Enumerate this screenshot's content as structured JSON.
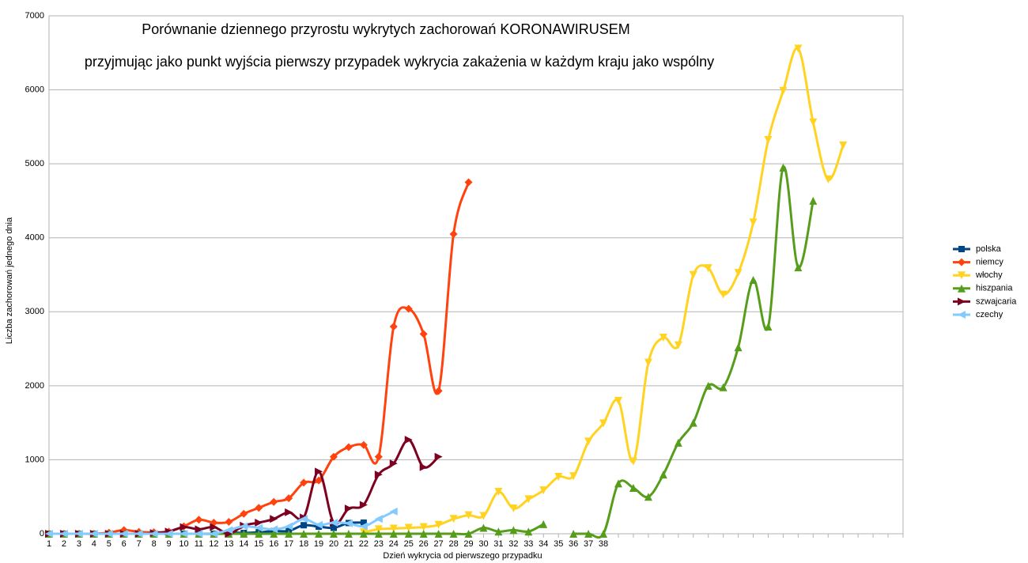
{
  "chart_data": {
    "type": "line",
    "title": "Porównanie dziennego przyrostu wykrytych zachorowań KORONAWIRUSEM",
    "subtitle": "przyjmując jako punkt wyjścia pierwszy przypadek wykrycia zakażenia w każdym kraju jako wspólny",
    "x_label": "Dzień wykrycia od pierwszego przypadku",
    "y_label": "Liczba zachorowań jednego dnia",
    "categories": [
      "1",
      "2",
      "3",
      "4",
      "5",
      "6",
      "7",
      "8",
      "9",
      "10",
      "11",
      "12",
      "13",
      "14",
      "15",
      "16",
      "17",
      "18",
      "19",
      "20",
      "21",
      "22",
      "23",
      "24",
      "25",
      "26",
      "27",
      "28",
      "29",
      "30",
      "31",
      "32",
      "33",
      "34",
      "35",
      "36",
      "37",
      "38",
      null,
      null,
      null,
      null,
      null,
      null,
      null,
      null,
      null,
      null,
      null,
      null,
      null,
      null,
      null,
      null,
      null,
      null,
      null,
      null
    ],
    "ylim": [
      0,
      7000
    ],
    "yticks": [
      0,
      1000,
      2000,
      3000,
      4000,
      5000,
      6000,
      7000
    ],
    "grid": true,
    "legend": "right",
    "series": [
      {
        "name": "polska",
        "color": "#004586",
        "marker": "square",
        "values": [
          0,
          0,
          0,
          0,
          0,
          0,
          0,
          0,
          0,
          0,
          0,
          0,
          17,
          11,
          20,
          36,
          38,
          115,
          96,
          80,
          145,
          150,
          null,
          null,
          null,
          null,
          null,
          null,
          null,
          null,
          null,
          null,
          null,
          null,
          null,
          null,
          null,
          null,
          null,
          null,
          null,
          null,
          null,
          null,
          null,
          null,
          null,
          null,
          null,
          null,
          null,
          null,
          null,
          null,
          null,
          null,
          null,
          null
        ]
      },
      {
        "name": "niemcy",
        "color": "#ff420e",
        "marker": "diamond",
        "values": [
          0,
          0,
          0,
          0,
          15,
          50,
          25,
          20,
          30,
          100,
          190,
          150,
          160,
          270,
          350,
          430,
          480,
          690,
          720,
          1040,
          1170,
          1200,
          1040,
          2800,
          3040,
          2700,
          1930,
          4050,
          4750,
          null,
          null,
          null,
          null,
          null,
          null,
          null,
          null,
          null,
          null,
          null,
          null,
          null,
          null,
          null,
          null,
          null,
          null,
          null,
          null,
          null,
          null,
          null,
          null,
          null,
          null,
          null,
          null,
          null
        ]
      },
      {
        "name": "włochy",
        "color": "#ffd320",
        "marker": "down",
        "values": [
          null,
          null,
          null,
          null,
          null,
          null,
          null,
          null,
          null,
          null,
          null,
          null,
          null,
          null,
          null,
          null,
          null,
          null,
          null,
          null,
          null,
          20,
          60,
          70,
          80,
          90,
          120,
          200,
          250,
          240,
          566,
          342,
          466,
          587,
          769,
          778,
          1247,
          1492,
          1797,
          977,
          2313,
          2651,
          2547,
          3497,
          3590,
          3233,
          3526,
          4207,
          5322,
          5986,
          6557,
          5560,
          4789,
          5249,
          null,
          null,
          null,
          null
        ]
      },
      {
        "name": "hiszpania",
        "color": "#579d1c",
        "marker": "up",
        "values": [
          0,
          0,
          0,
          0,
          0,
          0,
          0,
          0,
          0,
          0,
          0,
          0,
          0,
          0,
          0,
          0,
          0,
          0,
          0,
          0,
          0,
          0,
          0,
          0,
          0,
          0,
          0,
          0,
          0,
          80,
          30,
          50,
          30,
          130,
          null,
          0,
          0,
          0,
          680,
          620,
          500,
          800,
          1230,
          1500,
          2000,
          1980,
          2520,
          3430,
          2800,
          4950,
          3600,
          4500,
          null,
          null,
          null,
          null,
          null,
          null
        ]
      },
      {
        "name": "szwajcaria",
        "color": "#7e0021",
        "marker": "right",
        "values": [
          0,
          0,
          0,
          0,
          0,
          0,
          0,
          10,
          30,
          90,
          60,
          90,
          0,
          110,
          150,
          200,
          290,
          220,
          840,
          150,
          340,
          390,
          800,
          950,
          1270,
          900,
          1040,
          null,
          null,
          null,
          null,
          null,
          null,
          null,
          null,
          null,
          null,
          null,
          null,
          null,
          null,
          null,
          null,
          null,
          null,
          null,
          null,
          null,
          null,
          null,
          null,
          null,
          null,
          null,
          null,
          null,
          null,
          null
        ]
      },
      {
        "name": "czechy",
        "color": "#83caff",
        "marker": "left",
        "values": [
          0,
          0,
          0,
          0,
          0,
          0,
          0,
          0,
          0,
          0,
          0,
          0,
          50,
          100,
          80,
          60,
          100,
          200,
          120,
          150,
          140,
          100,
          200,
          300,
          null,
          null,
          null,
          null,
          null,
          null,
          null,
          null,
          null,
          null,
          null,
          null,
          null,
          null,
          null,
          null,
          null,
          null,
          null,
          null,
          null,
          null,
          null,
          null,
          null,
          null,
          null,
          null,
          null,
          null,
          null,
          null,
          null,
          null
        ]
      }
    ]
  }
}
